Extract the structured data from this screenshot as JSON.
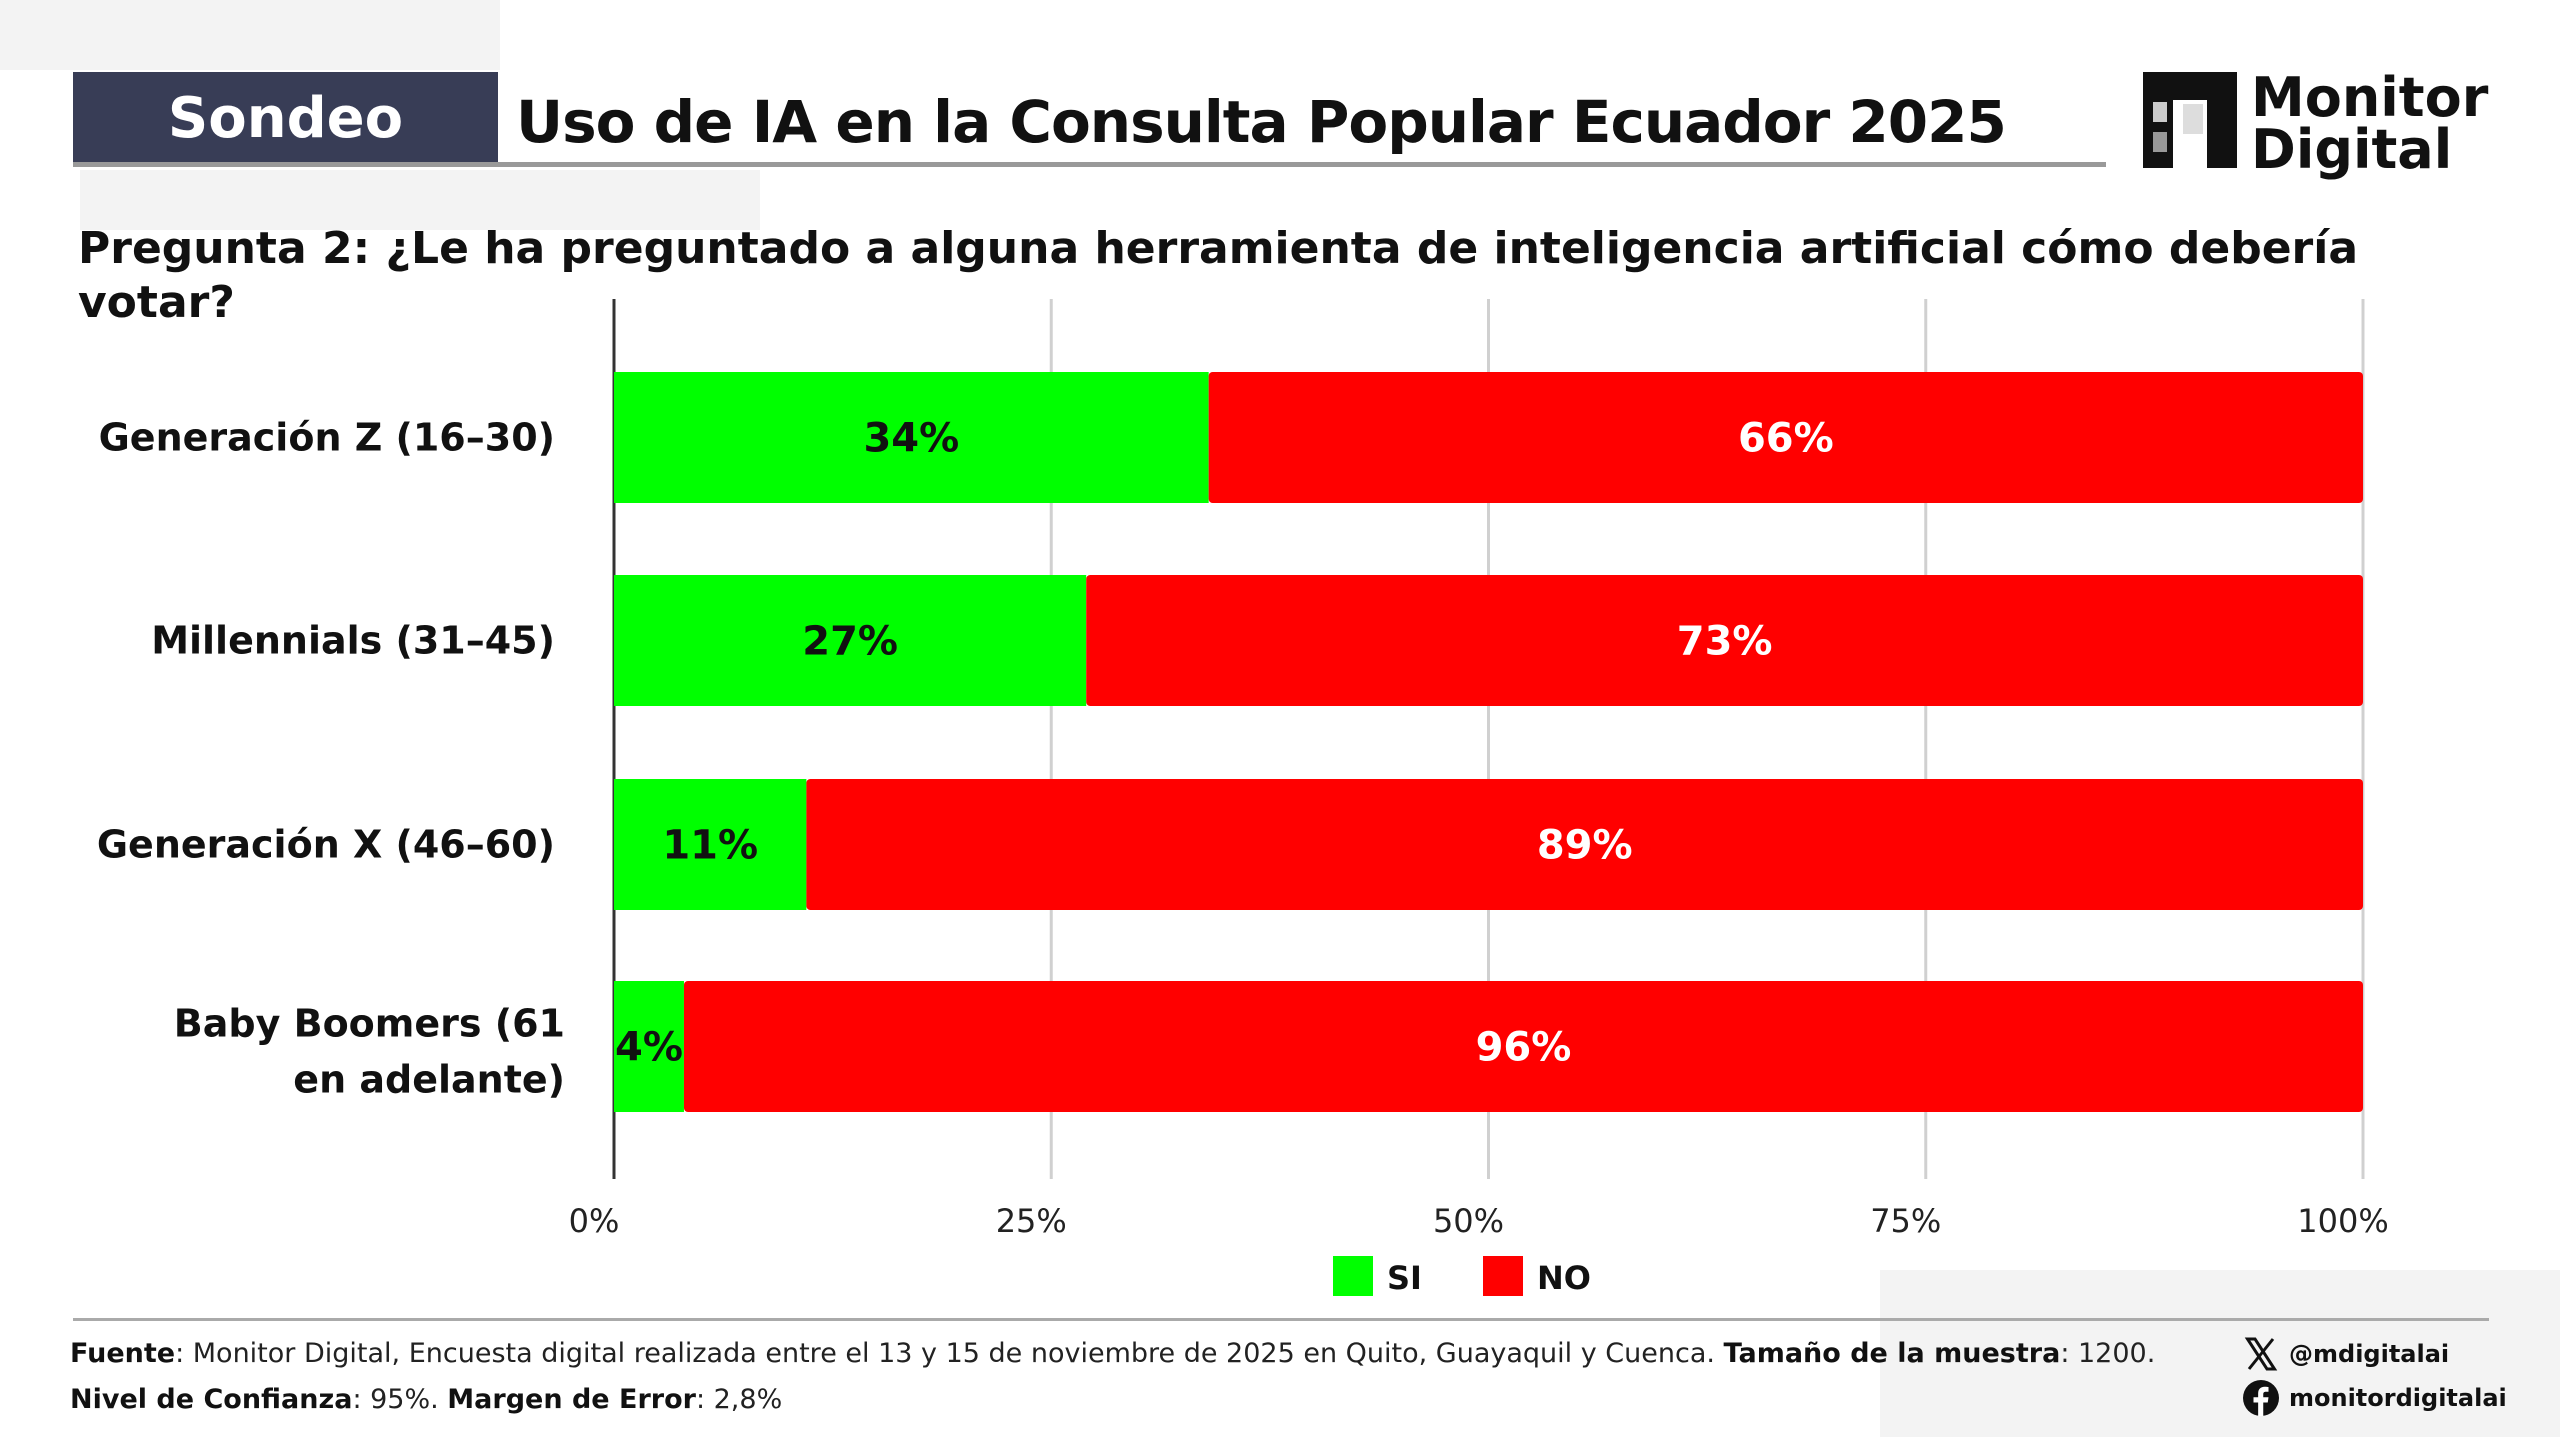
{
  "header": {
    "badge": "Sondeo",
    "title": "Uso de IA en la Consulta Popular Ecuador 2025"
  },
  "logo": {
    "line1": "Monitor",
    "line2": "Digital"
  },
  "question": "Pregunta 2: ¿Le ha preguntado a alguna herramienta de inteligencia artificial cómo debería votar?",
  "chart_data": {
    "type": "bar",
    "orientation": "horizontal",
    "stacked": true,
    "categories": [
      "Generación Z (16–30)",
      "Millennials (31–45)",
      "Generación X (46–60)",
      "Baby Boomers (61 en adelante)"
    ],
    "series": [
      {
        "name": "SI",
        "color": "#00ff00",
        "values": [
          34,
          27,
          11,
          4
        ],
        "labels": [
          "34%",
          "27%",
          "11%",
          "4%"
        ]
      },
      {
        "name": "NO",
        "color": "#ff0000",
        "values": [
          66,
          73,
          89,
          96
        ],
        "labels": [
          "66%",
          "73%",
          "89%",
          "96%"
        ]
      }
    ],
    "xlim": [
      0,
      100
    ],
    "xticks": [
      "0%",
      "25%",
      "50%",
      "75%",
      "100%"
    ],
    "grid": true,
    "legend": "bottom-center"
  },
  "footer": {
    "source_label": "Fuente",
    "source_text": ": Monitor Digital, Encuesta digital realizada entre el 13 y 15 de noviembre de 2025 en Quito, Guayaquil y Cuenca. ",
    "sample_label": "Tamaño de la muestra",
    "sample_text": ": 1200.",
    "confidence_label": "Nivel de Confianza",
    "confidence_text": ": 95%. ",
    "error_label": "Margen de Error",
    "error_text": ": 2,8%"
  },
  "social": {
    "x_handle": "@mdigitalai",
    "facebook_handle": "monitordigitalai"
  }
}
